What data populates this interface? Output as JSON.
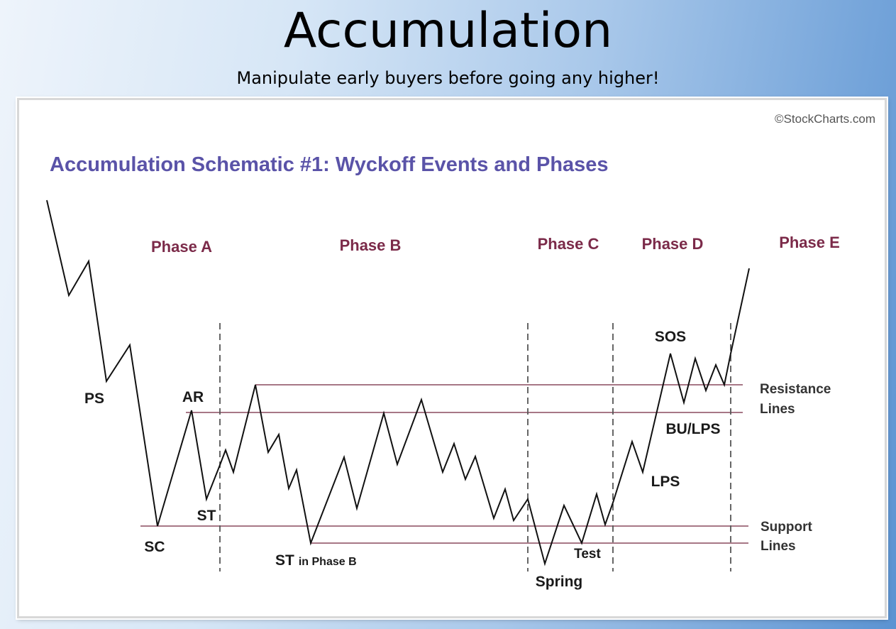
{
  "slide": {
    "title": "Accumulation",
    "subtitle": "Manipulate early buyers before going any higher!"
  },
  "diagram": {
    "credit": "©StockCharts.com",
    "heading": "Accumulation Schematic #1: Wyckoff Events and Phases",
    "heading_color": "#5a53a8",
    "phase_color": "#7b2a49",
    "line_color": "#8a4a5e",
    "phases": {
      "a": "Phase A",
      "b": "Phase B",
      "c": "Phase C",
      "d": "Phase D",
      "e": "Phase E"
    },
    "events": {
      "ps": "PS",
      "sc": "SC",
      "ar": "AR",
      "st": "ST",
      "st_phase_b_main": "ST",
      "st_phase_b_small": "in Phase B",
      "spring": "Spring",
      "test": "Test",
      "sos": "SOS",
      "lps": "LPS",
      "bu_lps": "BU/LPS"
    },
    "side_labels": {
      "resistance_1": "Resistance",
      "resistance_2": "Lines",
      "support_1": "Support",
      "support_2": "Lines"
    }
  }
}
